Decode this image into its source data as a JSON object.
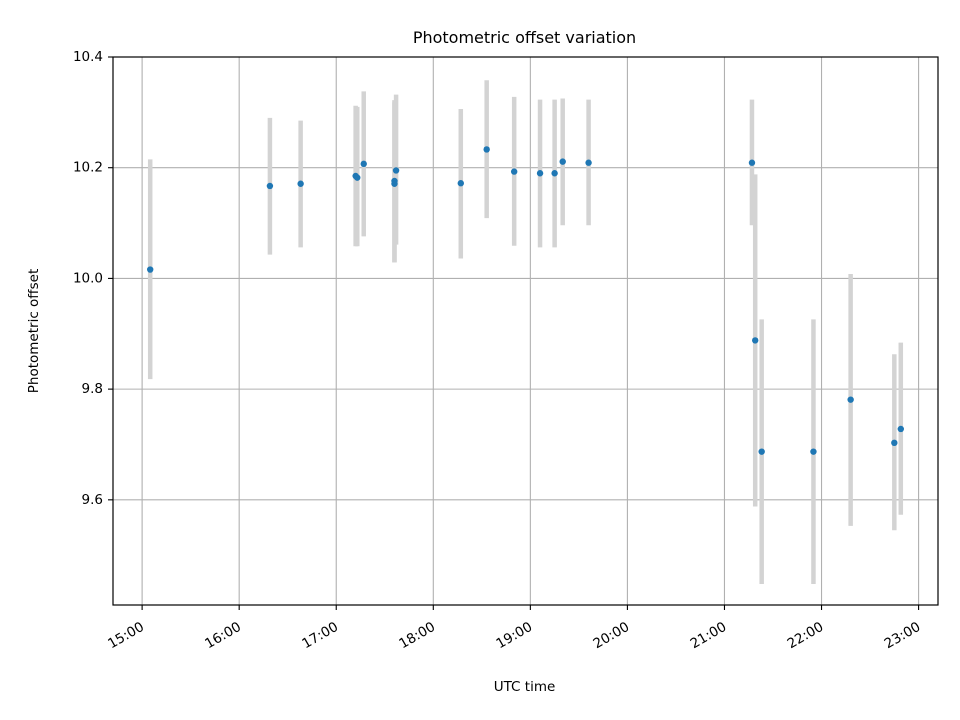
{
  "chart_data": {
    "type": "scatter",
    "title": "Photometric offset variation",
    "xlabel": "UTC time",
    "ylabel": "Photometric offset",
    "xlim": [
      "14:42",
      "23:12"
    ],
    "ylim": [
      9.41,
      10.4
    ],
    "xticks": [
      "15:00",
      "16:00",
      "17:00",
      "18:00",
      "19:00",
      "20:00",
      "21:00",
      "22:00",
      "23:00"
    ],
    "yticks": [
      "9.6",
      "9.8",
      "10.0",
      "10.2",
      "10.4"
    ],
    "grid": true,
    "colors": {
      "point": "#1f77b4",
      "errorbar": "#d3d3d3",
      "grid": "#b0b0b0"
    },
    "series": [
      {
        "points": [
          {
            "x": "15:05",
            "y": 10.016,
            "err_low": 9.818,
            "err_high": 10.215
          },
          {
            "x": "16:19",
            "y": 10.167,
            "err_low": 10.043,
            "err_high": 10.29
          },
          {
            "x": "16:38",
            "y": 10.171,
            "err_low": 10.056,
            "err_high": 10.285
          },
          {
            "x": "17:12",
            "y": 10.185,
            "err_low": 10.058,
            "err_high": 10.312
          },
          {
            "x": "17:13",
            "y": 10.182,
            "err_low": 10.058,
            "err_high": 10.31
          },
          {
            "x": "17:17",
            "y": 10.207,
            "err_low": 10.076,
            "err_high": 10.338
          },
          {
            "x": "17:36",
            "y": 10.176,
            "err_low": 10.029,
            "err_high": 10.322
          },
          {
            "x": "17:36",
            "y": 10.171,
            "err_low": 10.029,
            "err_high": 10.318
          },
          {
            "x": "17:37",
            "y": 10.195,
            "err_low": 10.061,
            "err_high": 10.332
          },
          {
            "x": "18:17",
            "y": 10.172,
            "err_low": 10.036,
            "err_high": 10.306
          },
          {
            "x": "18:33",
            "y": 10.233,
            "err_low": 10.109,
            "err_high": 10.358
          },
          {
            "x": "18:50",
            "y": 10.193,
            "err_low": 10.059,
            "err_high": 10.328
          },
          {
            "x": "19:06",
            "y": 10.19,
            "err_low": 10.056,
            "err_high": 10.323
          },
          {
            "x": "19:15",
            "y": 10.19,
            "err_low": 10.056,
            "err_high": 10.323
          },
          {
            "x": "19:20",
            "y": 10.211,
            "err_low": 10.096,
            "err_high": 10.325
          },
          {
            "x": "19:36",
            "y": 10.209,
            "err_low": 10.096,
            "err_high": 10.323
          },
          {
            "x": "21:17",
            "y": 10.209,
            "err_low": 10.096,
            "err_high": 10.323
          },
          {
            "x": "21:19",
            "y": 9.888,
            "err_low": 9.588,
            "err_high": 10.188
          },
          {
            "x": "21:23",
            "y": 9.687,
            "err_low": 9.448,
            "err_high": 9.926
          },
          {
            "x": "21:55",
            "y": 9.687,
            "err_low": 9.448,
            "err_high": 9.926
          },
          {
            "x": "22:18",
            "y": 9.781,
            "err_low": 9.553,
            "err_high": 10.008
          },
          {
            "x": "22:45",
            "y": 9.703,
            "err_low": 9.545,
            "err_high": 9.863
          },
          {
            "x": "22:49",
            "y": 9.728,
            "err_low": 9.573,
            "err_high": 9.884
          }
        ]
      }
    ]
  }
}
